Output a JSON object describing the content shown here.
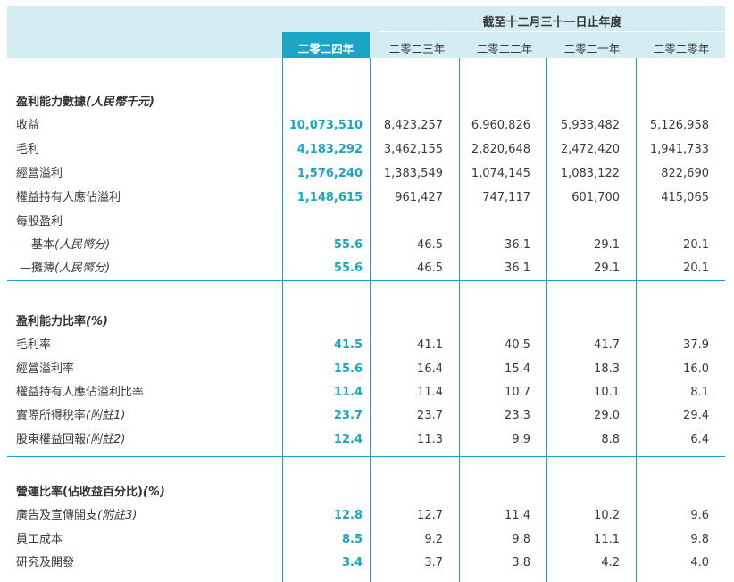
{
  "header": {
    "title": "截至十二月三十一日止年度",
    "years": [
      "二零二四年",
      "二零二三年",
      "二零二二年",
      "二零二一年",
      "二零二零年"
    ]
  },
  "sections": [
    {
      "heading": "盈利能力數據",
      "heading_note": "(人民幣千元)",
      "rows": [
        {
          "label": "收益",
          "note": "",
          "values": [
            "10,073,510",
            "8,423,257",
            "6,960,826",
            "5,933,482",
            "5,126,958"
          ]
        },
        {
          "label": "毛利",
          "note": "",
          "values": [
            "4,183,292",
            "3,462,155",
            "2,820,648",
            "2,472,420",
            "1,941,733"
          ]
        },
        {
          "label": "經營溢利",
          "note": "",
          "values": [
            "1,576,240",
            "1,383,549",
            "1,074,145",
            "1,083,122",
            "822,690"
          ]
        },
        {
          "label": "權益持有人應佔溢利",
          "note": "",
          "values": [
            "1,148,615",
            "961,427",
            "747,117",
            "601,700",
            "415,065"
          ]
        },
        {
          "label": "每股盈利",
          "note": "",
          "values": [
            "",
            "",
            "",
            "",
            ""
          ]
        },
        {
          "label": "—基本",
          "note": "(人民幣分)",
          "values": [
            "55.6",
            "46.5",
            "36.1",
            "29.1",
            "20.1"
          ]
        },
        {
          "label": "—攤薄",
          "note": "(人民幣分)",
          "values": [
            "55.6",
            "46.5",
            "36.1",
            "29.1",
            "20.1"
          ]
        }
      ]
    },
    {
      "heading": "盈利能力比率",
      "heading_note": "(%)",
      "rows": [
        {
          "label": "毛利率",
          "note": "",
          "values": [
            "41.5",
            "41.1",
            "40.5",
            "41.7",
            "37.9"
          ]
        },
        {
          "label": "經營溢利率",
          "note": "",
          "values": [
            "15.6",
            "16.4",
            "15.4",
            "18.3",
            "16.0"
          ]
        },
        {
          "label": "權益持有人應佔溢利比率",
          "note": "",
          "values": [
            "11.4",
            "11.4",
            "10.7",
            "10.1",
            "8.1"
          ]
        },
        {
          "label": "實際所得稅率",
          "note": "(附註1)",
          "values": [
            "23.7",
            "23.7",
            "23.3",
            "29.0",
            "29.4"
          ]
        },
        {
          "label": "股東權益回報",
          "note": "(附註2)",
          "values": [
            "12.4",
            "11.3",
            "9.9",
            "8.8",
            "6.4"
          ]
        }
      ]
    },
    {
      "heading": "營運比率(佔收益百分比)",
      "heading_note": "(%)",
      "rows": [
        {
          "label": "廣告及宣傳開支",
          "note": "(附註3)",
          "values": [
            "12.8",
            "12.7",
            "11.4",
            "10.2",
            "9.6"
          ]
        },
        {
          "label": "員工成本",
          "note": "",
          "values": [
            "8.5",
            "9.2",
            "9.8",
            "11.1",
            "9.8"
          ]
        },
        {
          "label": "研究及開發",
          "note": "",
          "values": [
            "3.4",
            "3.7",
            "3.8",
            "4.2",
            "4.0"
          ]
        }
      ]
    }
  ],
  "colors": {
    "accent": "#1aa5c4",
    "header_band": "#d4edf3",
    "text": "#3a3a3a"
  }
}
